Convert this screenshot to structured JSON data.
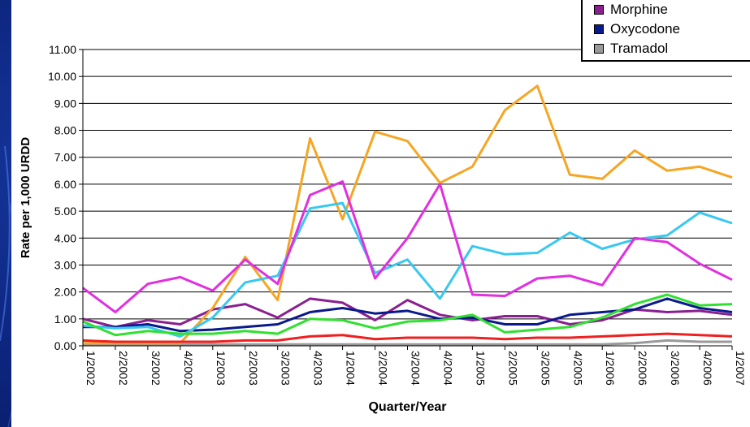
{
  "chart_data": {
    "type": "line",
    "xlabel": "Quarter/Year",
    "ylabel": "Rate per 1,000 URDD",
    "ylim": [
      0,
      11
    ],
    "y_ticks": [
      "0.00",
      "1.00",
      "2.00",
      "3.00",
      "4.00",
      "5.00",
      "6.00",
      "7.00",
      "8.00",
      "9.00",
      "10.00",
      "11.00"
    ],
    "categories": [
      "1/2002",
      "2/2002",
      "3/2002",
      "4/2002",
      "1/2003",
      "2/2003",
      "3/2003",
      "4/2003",
      "1/2004",
      "2/2004",
      "3/2004",
      "4/2004",
      "1/2005",
      "2/2005",
      "3/2005",
      "4/2005",
      "1/2006",
      "2/2006",
      "3/2006",
      "4/2006",
      "1/2007"
    ],
    "grid": "horizontal",
    "legend_placement": "top-right",
    "series": [
      {
        "name": "Morphine",
        "color": "#8a2090",
        "values": [
          1.0,
          0.7,
          0.95,
          0.8,
          1.35,
          1.55,
          1.05,
          1.75,
          1.6,
          0.95,
          1.7,
          1.15,
          0.95,
          1.1,
          1.1,
          0.8,
          0.95,
          1.35,
          1.25,
          1.3,
          1.15
        ]
      },
      {
        "name": "Oxycodone",
        "color": "#0a1a8c",
        "values": [
          0.7,
          0.7,
          0.8,
          0.55,
          0.6,
          0.7,
          0.8,
          1.25,
          1.4,
          1.2,
          1.3,
          1.0,
          1.05,
          0.8,
          0.8,
          1.15,
          1.25,
          1.35,
          1.75,
          1.4,
          1.25
        ]
      },
      {
        "name": "Tramadol",
        "color": "#999999",
        "values": [
          0.05,
          0.05,
          0.05,
          0.05,
          0.05,
          0.05,
          0.05,
          0.05,
          0.05,
          0.05,
          0.05,
          0.05,
          0.05,
          0.05,
          0.05,
          0.05,
          0.05,
          0.1,
          0.2,
          0.15,
          0.15
        ]
      },
      {
        "name": "",
        "color": "#f5a623",
        "values": [
          0.1,
          0.1,
          0.1,
          0.1,
          1.4,
          3.3,
          1.7,
          7.7,
          4.7,
          7.95,
          7.6,
          6.05,
          6.65,
          8.75,
          9.65,
          6.35,
          6.2,
          7.25,
          6.5,
          6.65,
          6.25
        ]
      },
      {
        "name": "",
        "color": "#38c8f0",
        "values": [
          0.75,
          0.65,
          0.7,
          0.35,
          1.05,
          2.35,
          2.6,
          5.1,
          5.3,
          2.7,
          3.2,
          1.75,
          3.7,
          3.4,
          3.45,
          4.2,
          3.6,
          3.95,
          4.1,
          4.95,
          4.55
        ]
      },
      {
        "name": "",
        "color": "#e030e0",
        "values": [
          2.15,
          1.25,
          2.3,
          2.55,
          2.05,
          3.2,
          2.3,
          5.6,
          6.1,
          2.5,
          4.0,
          6.0,
          1.9,
          1.85,
          2.5,
          2.6,
          2.25,
          4.0,
          3.85,
          3.05,
          2.45
        ]
      },
      {
        "name": "",
        "color": "#30e030",
        "values": [
          0.9,
          0.4,
          0.55,
          0.45,
          0.45,
          0.55,
          0.45,
          1.0,
          0.95,
          0.65,
          0.9,
          0.95,
          1.15,
          0.5,
          0.6,
          0.7,
          1.05,
          1.55,
          1.9,
          1.5,
          1.55
        ]
      },
      {
        "name": "",
        "color": "#ee2020",
        "values": [
          0.2,
          0.15,
          0.15,
          0.15,
          0.15,
          0.2,
          0.2,
          0.35,
          0.4,
          0.25,
          0.3,
          0.3,
          0.3,
          0.25,
          0.3,
          0.3,
          0.35,
          0.4,
          0.45,
          0.4,
          0.35
        ]
      }
    ]
  },
  "legend": {
    "items": [
      {
        "label": "Morphine",
        "color": "#8a2090"
      },
      {
        "label": "Oxycodone",
        "color": "#0a1a8c"
      },
      {
        "label": "Tramadol",
        "color": "#999999"
      }
    ]
  }
}
